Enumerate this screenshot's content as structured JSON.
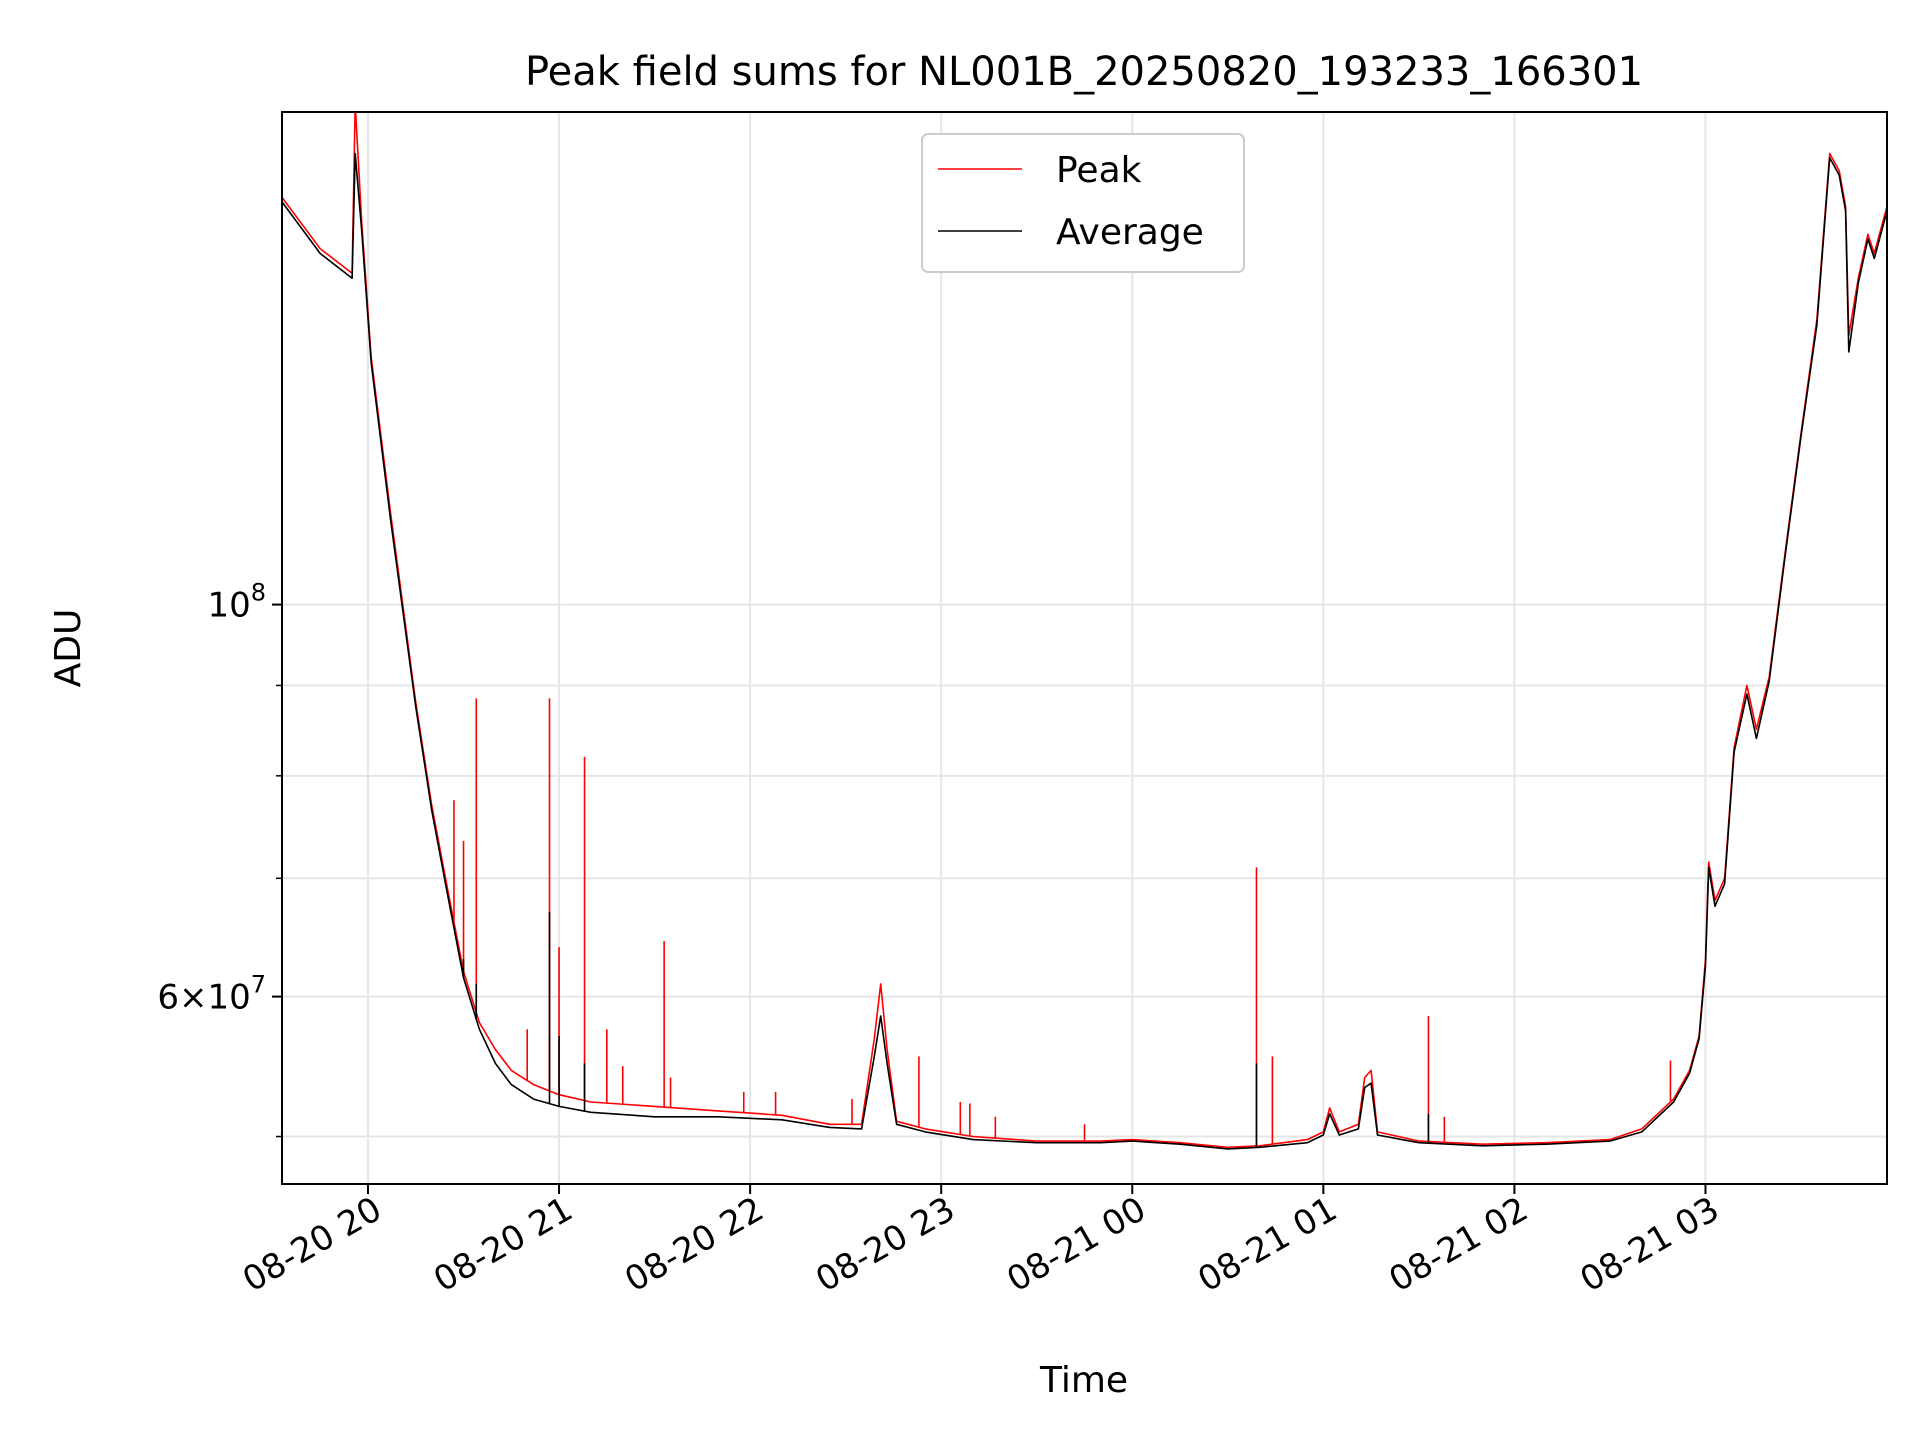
{
  "chart_data": {
    "type": "line",
    "title": "Peak field sums for NL001B_20250820_193233_166301",
    "xlabel": "Time",
    "ylabel": "ADU",
    "y_scale": "log",
    "ylim": [
      47000000,
      190000000
    ],
    "xlim": [
      "2025-08-20 19:33",
      "2025-08-21 03:57"
    ],
    "grid": true,
    "legend_position": "top-center",
    "x_ticks": [
      {
        "time": "2025-08-20 20:00",
        "label": "08-20 20"
      },
      {
        "time": "2025-08-20 21:00",
        "label": "08-20 21"
      },
      {
        "time": "2025-08-20 22:00",
        "label": "08-20 22"
      },
      {
        "time": "2025-08-20 23:00",
        "label": "08-20 23"
      },
      {
        "time": "2025-08-21 00:00",
        "label": "08-21 00"
      },
      {
        "time": "2025-08-21 01:00",
        "label": "08-21 01"
      },
      {
        "time": "2025-08-21 02:00",
        "label": "08-21 02"
      },
      {
        "time": "2025-08-21 03:00",
        "label": "08-21 03"
      }
    ],
    "y_major_ticks": [
      {
        "value": 100000000,
        "base": "10",
        "exp": "8"
      },
      {
        "value": 60000000,
        "mantissa": "6",
        "base": "10",
        "exp": "7"
      }
    ],
    "y_minor_grid": [
      50000000,
      70000000,
      80000000,
      90000000
    ],
    "series": [
      {
        "name": "Peak",
        "color": "#ff0000",
        "points": [
          [
            "2025-08-20 19:33",
            170000000
          ],
          [
            "2025-08-20 19:45",
            159000000
          ],
          [
            "2025-08-20 19:55",
            154000000
          ],
          [
            "2025-08-20 19:56",
            192000000
          ],
          [
            "2025-08-20 19:58",
            165000000
          ],
          [
            "2025-08-20 20:01",
            138000000
          ],
          [
            "2025-08-20 20:07",
            113000000
          ],
          [
            "2025-08-20 20:15",
            88000000
          ],
          [
            "2025-08-20 20:20",
            77000000
          ],
          [
            "2025-08-20 20:25",
            69000000
          ],
          [
            "2025-08-20 20:30",
            62000000
          ],
          [
            "2025-08-20 20:35",
            58000000
          ],
          [
            "2025-08-20 20:40",
            56000000
          ],
          [
            "2025-08-20 20:45",
            54500000
          ],
          [
            "2025-08-20 20:52",
            53500000
          ],
          [
            "2025-08-20 21:00",
            52800000
          ],
          [
            "2025-08-20 21:10",
            52300000
          ],
          [
            "2025-08-20 21:30",
            52000000
          ],
          [
            "2025-08-20 21:50",
            51700000
          ],
          [
            "2025-08-20 22:10",
            51400000
          ],
          [
            "2025-08-20 22:25",
            50800000
          ],
          [
            "2025-08-20 22:35",
            50800000
          ],
          [
            "2025-08-20 22:39",
            56800000
          ],
          [
            "2025-08-20 22:41",
            61000000
          ],
          [
            "2025-08-20 22:43",
            56000000
          ],
          [
            "2025-08-20 22:46",
            51000000
          ],
          [
            "2025-08-20 22:55",
            50500000
          ],
          [
            "2025-08-20 23:10",
            50000000
          ],
          [
            "2025-08-20 23:30",
            49700000
          ],
          [
            "2025-08-20 23:50",
            49700000
          ],
          [
            "2025-08-21 00:00",
            49800000
          ],
          [
            "2025-08-21 00:15",
            49600000
          ],
          [
            "2025-08-21 00:30",
            49300000
          ],
          [
            "2025-08-21 00:40",
            49400000
          ],
          [
            "2025-08-21 00:55",
            49800000
          ],
          [
            "2025-08-21 01:00",
            50300000
          ],
          [
            "2025-08-21 01:02",
            51900000
          ],
          [
            "2025-08-21 01:05",
            50300000
          ],
          [
            "2025-08-21 01:11",
            50800000
          ],
          [
            "2025-08-21 01:13",
            54000000
          ],
          [
            "2025-08-21 01:15",
            54500000
          ],
          [
            "2025-08-21 01:17",
            50300000
          ],
          [
            "2025-08-21 01:30",
            49700000
          ],
          [
            "2025-08-21 01:50",
            49500000
          ],
          [
            "2025-08-21 02:10",
            49600000
          ],
          [
            "2025-08-21 02:30",
            49800000
          ],
          [
            "2025-08-21 02:40",
            50500000
          ],
          [
            "2025-08-21 02:50",
            52500000
          ],
          [
            "2025-08-21 02:55",
            54500000
          ],
          [
            "2025-08-21 02:58",
            57000000
          ],
          [
            "2025-08-21 03:00",
            63000000
          ],
          [
            "2025-08-21 03:01",
            71500000
          ],
          [
            "2025-08-21 03:03",
            68000000
          ],
          [
            "2025-08-21 03:06",
            70000000
          ],
          [
            "2025-08-21 03:09",
            83000000
          ],
          [
            "2025-08-21 03:13",
            90000000
          ],
          [
            "2025-08-21 03:16",
            85000000
          ],
          [
            "2025-08-21 03:20",
            91000000
          ],
          [
            "2025-08-21 03:25",
            107000000
          ],
          [
            "2025-08-21 03:30",
            125000000
          ],
          [
            "2025-08-21 03:35",
            145000000
          ],
          [
            "2025-08-21 03:39",
            180000000
          ],
          [
            "2025-08-21 03:42",
            176000000
          ],
          [
            "2025-08-21 03:44",
            168000000
          ],
          [
            "2025-08-21 03:45",
            142000000
          ],
          [
            "2025-08-21 03:48",
            153000000
          ],
          [
            "2025-08-21 03:51",
            162000000
          ],
          [
            "2025-08-21 03:53",
            158000000
          ],
          [
            "2025-08-21 03:57",
            168000000
          ]
        ],
        "spikes": [
          [
            "2025-08-20 20:27",
            77500000
          ],
          [
            "2025-08-20 20:30",
            73500000
          ],
          [
            "2025-08-20 20:34",
            88500000
          ],
          [
            "2025-08-20 20:50",
            57500000
          ],
          [
            "2025-08-20 20:57",
            88500000
          ],
          [
            "2025-08-20 21:00",
            64000000
          ],
          [
            "2025-08-20 21:08",
            82000000
          ],
          [
            "2025-08-20 21:15",
            57500000
          ],
          [
            "2025-08-20 21:20",
            54800000
          ],
          [
            "2025-08-20 21:33",
            64500000
          ],
          [
            "2025-08-20 21:35",
            54000000
          ],
          [
            "2025-08-20 21:58",
            53000000
          ],
          [
            "2025-08-20 22:08",
            53000000
          ],
          [
            "2025-08-20 22:32",
            52500000
          ],
          [
            "2025-08-20 22:53",
            55500000
          ],
          [
            "2025-08-20 23:06",
            52300000
          ],
          [
            "2025-08-20 23:09",
            52200000
          ],
          [
            "2025-08-20 23:17",
            51300000
          ],
          [
            "2025-08-20 23:45",
            50800000
          ],
          [
            "2025-08-21 00:39",
            71000000
          ],
          [
            "2025-08-21 00:44",
            55500000
          ],
          [
            "2025-08-21 01:33",
            58500000
          ],
          [
            "2025-08-21 01:38",
            51300000
          ],
          [
            "2025-08-21 02:49",
            55200000
          ]
        ]
      },
      {
        "name": "Average",
        "color": "#000000",
        "points": [
          [
            "2025-08-20 19:33",
            169000000
          ],
          [
            "2025-08-20 19:45",
            158000000
          ],
          [
            "2025-08-20 19:55",
            153000000
          ],
          [
            "2025-08-20 19:56",
            180000000
          ],
          [
            "2025-08-20 19:58",
            163000000
          ],
          [
            "2025-08-20 20:01",
            137000000
          ],
          [
            "2025-08-20 20:07",
            112000000
          ],
          [
            "2025-08-20 20:15",
            87500000
          ],
          [
            "2025-08-20 20:20",
            76500000
          ],
          [
            "2025-08-20 20:25",
            68500000
          ],
          [
            "2025-08-20 20:30",
            61500000
          ],
          [
            "2025-08-20 20:35",
            57500000
          ],
          [
            "2025-08-20 20:40",
            55000000
          ],
          [
            "2025-08-20 20:45",
            53500000
          ],
          [
            "2025-08-20 20:52",
            52500000
          ],
          [
            "2025-08-20 21:00",
            52000000
          ],
          [
            "2025-08-20 21:10",
            51600000
          ],
          [
            "2025-08-20 21:30",
            51300000
          ],
          [
            "2025-08-20 21:50",
            51300000
          ],
          [
            "2025-08-20 22:10",
            51100000
          ],
          [
            "2025-08-20 22:25",
            50600000
          ],
          [
            "2025-08-20 22:35",
            50500000
          ],
          [
            "2025-08-20 22:39",
            55500000
          ],
          [
            "2025-08-20 22:41",
            58500000
          ],
          [
            "2025-08-20 22:43",
            55000000
          ],
          [
            "2025-08-20 22:46",
            50800000
          ],
          [
            "2025-08-20 22:55",
            50300000
          ],
          [
            "2025-08-20 23:10",
            49800000
          ],
          [
            "2025-08-20 23:30",
            49600000
          ],
          [
            "2025-08-20 23:50",
            49600000
          ],
          [
            "2025-08-21 00:00",
            49700000
          ],
          [
            "2025-08-21 00:15",
            49500000
          ],
          [
            "2025-08-21 00:30",
            49200000
          ],
          [
            "2025-08-21 00:40",
            49300000
          ],
          [
            "2025-08-21 00:55",
            49600000
          ],
          [
            "2025-08-21 01:00",
            50100000
          ],
          [
            "2025-08-21 01:02",
            51500000
          ],
          [
            "2025-08-21 01:05",
            50100000
          ],
          [
            "2025-08-21 01:11",
            50500000
          ],
          [
            "2025-08-21 01:13",
            53300000
          ],
          [
            "2025-08-21 01:15",
            53600000
          ],
          [
            "2025-08-21 01:17",
            50100000
          ],
          [
            "2025-08-21 01:30",
            49600000
          ],
          [
            "2025-08-21 01:50",
            49400000
          ],
          [
            "2025-08-21 02:10",
            49500000
          ],
          [
            "2025-08-21 02:30",
            49700000
          ],
          [
            "2025-08-21 02:40",
            50300000
          ],
          [
            "2025-08-21 02:50",
            52300000
          ],
          [
            "2025-08-21 02:55",
            54300000
          ],
          [
            "2025-08-21 02:58",
            56800000
          ],
          [
            "2025-08-21 03:00",
            62500000
          ],
          [
            "2025-08-21 03:01",
            71000000
          ],
          [
            "2025-08-21 03:03",
            67500000
          ],
          [
            "2025-08-21 03:06",
            69500000
          ],
          [
            "2025-08-21 03:09",
            82500000
          ],
          [
            "2025-08-21 03:13",
            89000000
          ],
          [
            "2025-08-21 03:16",
            84000000
          ],
          [
            "2025-08-21 03:20",
            90500000
          ],
          [
            "2025-08-21 03:25",
            106500000
          ],
          [
            "2025-08-21 03:30",
            124500000
          ],
          [
            "2025-08-21 03:35",
            144000000
          ],
          [
            "2025-08-21 03:39",
            179000000
          ],
          [
            "2025-08-21 03:42",
            175000000
          ],
          [
            "2025-08-21 03:44",
            167000000
          ],
          [
            "2025-08-21 03:45",
            139000000
          ],
          [
            "2025-08-21 03:48",
            152000000
          ],
          [
            "2025-08-21 03:51",
            161000000
          ],
          [
            "2025-08-21 03:53",
            157000000
          ],
          [
            "2025-08-21 03:57",
            167000000
          ]
        ],
        "spikes": [
          [
            "2025-08-20 20:30",
            63000000
          ],
          [
            "2025-08-20 20:34",
            61000000
          ],
          [
            "2025-08-20 20:57",
            67000000
          ],
          [
            "2025-08-20 21:00",
            57000000
          ],
          [
            "2025-08-20 21:08",
            55000000
          ],
          [
            "2025-08-21 00:39",
            55000000
          ],
          [
            "2025-08-21 01:33",
            51500000
          ]
        ]
      }
    ]
  }
}
